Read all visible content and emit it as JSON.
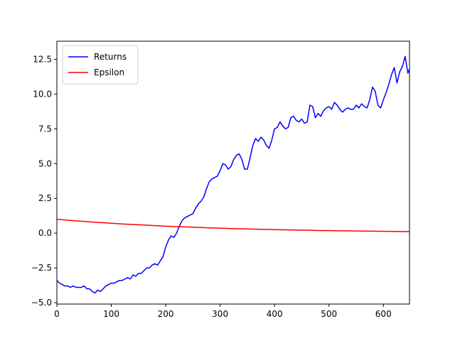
{
  "chart_data": {
    "type": "line",
    "title": "",
    "xlabel": "",
    "ylabel": "",
    "xlim": [
      0,
      648
    ],
    "ylim": [
      -5.1,
      13.8
    ],
    "xticks": [
      0,
      100,
      200,
      300,
      400,
      500,
      600
    ],
    "yticks": [
      -5.0,
      -2.5,
      0.0,
      2.5,
      5.0,
      7.5,
      10.0,
      12.5
    ],
    "xtick_labels": [
      "0",
      "100",
      "200",
      "300",
      "400",
      "500",
      "600"
    ],
    "ytick_labels": [
      "−5.0",
      "−2.5",
      "0.0",
      "2.5",
      "5.0",
      "7.5",
      "10.0",
      "12.5"
    ],
    "grid": false,
    "legend_position": "upper-left",
    "series": [
      {
        "name": "Returns",
        "color": "#0000ff",
        "x": [
          0,
          5,
          10,
          15,
          20,
          25,
          30,
          35,
          40,
          45,
          50,
          55,
          60,
          65,
          70,
          75,
          80,
          85,
          90,
          95,
          100,
          105,
          110,
          115,
          120,
          125,
          130,
          135,
          140,
          145,
          150,
          155,
          160,
          165,
          170,
          175,
          180,
          185,
          190,
          195,
          200,
          205,
          210,
          215,
          220,
          225,
          230,
          235,
          240,
          245,
          250,
          255,
          260,
          265,
          270,
          275,
          280,
          285,
          290,
          295,
          300,
          305,
          310,
          315,
          320,
          325,
          330,
          335,
          340,
          345,
          350,
          355,
          360,
          365,
          370,
          375,
          380,
          385,
          390,
          395,
          400,
          405,
          410,
          415,
          420,
          425,
          430,
          435,
          440,
          445,
          450,
          455,
          460,
          465,
          470,
          475,
          480,
          485,
          490,
          495,
          500,
          505,
          510,
          515,
          520,
          525,
          530,
          535,
          540,
          545,
          550,
          555,
          560,
          565,
          570,
          575,
          580,
          585,
          590,
          595,
          600,
          605,
          610,
          615,
          620,
          625,
          630,
          635,
          640,
          645,
          648
        ],
        "y": [
          -3.4,
          -3.6,
          -3.7,
          -3.8,
          -3.8,
          -3.9,
          -3.8,
          -3.9,
          -3.9,
          -3.9,
          -3.8,
          -4.0,
          -4.0,
          -4.2,
          -4.3,
          -4.1,
          -4.2,
          -4.0,
          -3.8,
          -3.7,
          -3.6,
          -3.6,
          -3.5,
          -3.4,
          -3.4,
          -3.3,
          -3.2,
          -3.3,
          -3.0,
          -3.1,
          -2.9,
          -2.9,
          -2.7,
          -2.5,
          -2.5,
          -2.3,
          -2.2,
          -2.3,
          -2.0,
          -1.7,
          -1.0,
          -0.5,
          -0.2,
          -0.3,
          0.0,
          0.5,
          0.9,
          1.1,
          1.2,
          1.3,
          1.4,
          1.8,
          2.1,
          2.3,
          2.6,
          3.2,
          3.7,
          3.9,
          4.0,
          4.1,
          4.5,
          5.0,
          4.9,
          4.6,
          4.8,
          5.3,
          5.6,
          5.7,
          5.3,
          4.6,
          4.6,
          5.4,
          6.3,
          6.8,
          6.6,
          6.9,
          6.7,
          6.3,
          6.1,
          6.7,
          7.5,
          7.6,
          8.0,
          7.7,
          7.5,
          7.6,
          8.3,
          8.4,
          8.1,
          8.0,
          8.2,
          7.9,
          8.0,
          9.2,
          9.1,
          8.3,
          8.6,
          8.4,
          8.8,
          9.0,
          9.1,
          8.9,
          9.4,
          9.2,
          8.9,
          8.7,
          8.9,
          9.0,
          8.9,
          8.9,
          9.2,
          9.0,
          9.3,
          9.1,
          9.0,
          9.6,
          10.5,
          10.2,
          9.2,
          9.0,
          9.6,
          10.1,
          10.7,
          11.4,
          11.9,
          10.8,
          11.6,
          12.0,
          12.7,
          11.5,
          11.8
        ]
      },
      {
        "name": "Epsilon",
        "color": "#ff0000",
        "x": [
          0,
          20,
          40,
          60,
          80,
          100,
          120,
          140,
          160,
          180,
          200,
          220,
          240,
          260,
          280,
          300,
          320,
          340,
          360,
          380,
          400,
          420,
          440,
          460,
          480,
          500,
          520,
          540,
          560,
          580,
          600,
          620,
          640,
          648
        ],
        "y": [
          1.0,
          0.93,
          0.87,
          0.81,
          0.76,
          0.71,
          0.66,
          0.62,
          0.58,
          0.54,
          0.5,
          0.47,
          0.44,
          0.41,
          0.38,
          0.36,
          0.33,
          0.31,
          0.29,
          0.27,
          0.25,
          0.24,
          0.22,
          0.21,
          0.19,
          0.18,
          0.17,
          0.16,
          0.15,
          0.14,
          0.13,
          0.12,
          0.11,
          0.11
        ]
      }
    ]
  }
}
